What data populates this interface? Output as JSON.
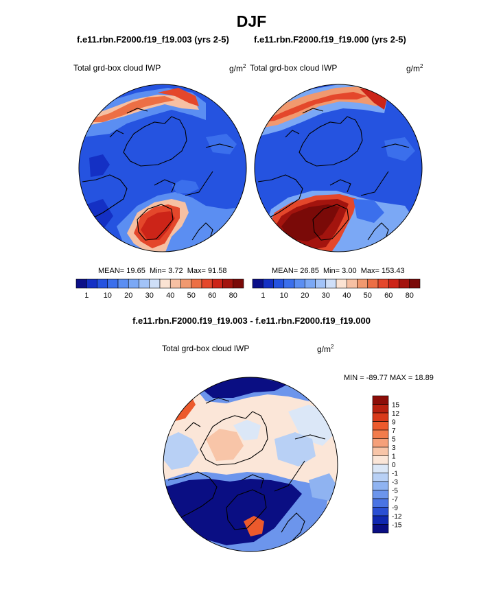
{
  "page": {
    "season": "DJF",
    "case_a": "f.e11.rbn.F2000.f19_f19.003 (yrs 2-5)",
    "case_b": "f.e11.rbn.F2000.f19_f19.000 (yrs 2-5)",
    "diff_title": "f.e11.rbn.F2000.f19_f19.003 - f.e11.rbn.F2000.f19_f19.000",
    "variable": "Total grd-box cloud IWP",
    "unit": "g/m",
    "unit_exp": "2"
  },
  "chart_data": [
    {
      "type": "heatmap",
      "projection": "north polar stereographic",
      "title": "Total grd-box cloud IWP",
      "units": "g/m^2",
      "stats": {
        "mean": "19.65",
        "min": "3.72",
        "max": "91.58"
      },
      "mean_label": "MEAN=",
      "min_label": "Min=",
      "max_label": "Max=",
      "colorbar": {
        "levels": [
          1,
          5,
          10,
          15,
          20,
          25,
          30,
          35,
          40,
          45,
          50,
          55,
          60,
          70,
          80
        ],
        "tick_labels": [
          "1",
          "10",
          "20",
          "30",
          "40",
          "50",
          "60",
          "80"
        ],
        "colors": [
          "#0b0f88",
          "#1430c4",
          "#2553e0",
          "#3b6fec",
          "#5b8ef2",
          "#7ba8f5",
          "#a2c3f8",
          "#cfdff8",
          "#fbe3d3",
          "#f6c0a3",
          "#f1996f",
          "#ec6f45",
          "#e4472b",
          "#cc2418",
          "#a3140e",
          "#7a0a08"
        ]
      }
    },
    {
      "type": "heatmap",
      "projection": "north polar stereographic",
      "title": "Total grd-box cloud IWP",
      "units": "g/m^2",
      "stats": {
        "mean": "26.85",
        "min": "3.00",
        "max": "153.43"
      },
      "mean_label": "MEAN=",
      "min_label": "Min=",
      "max_label": "Max=",
      "colorbar": {
        "levels": [
          1,
          5,
          10,
          15,
          20,
          25,
          30,
          35,
          40,
          45,
          50,
          55,
          60,
          70,
          80
        ],
        "tick_labels": [
          "1",
          "10",
          "20",
          "30",
          "40",
          "50",
          "60",
          "80"
        ]
      }
    },
    {
      "type": "heatmap",
      "projection": "north polar stereographic",
      "title": "Total grd-box cloud IWP",
      "units": "g/m^2",
      "minmax_text": "MIN = -89.77 MAX =  18.89",
      "colorbar": {
        "levels": [
          "15",
          "12",
          "9",
          "7",
          "5",
          "3",
          "1",
          "0",
          "-1",
          "-3",
          "-5",
          "-7",
          "-9",
          "-12",
          "-15"
        ],
        "colors": [
          "#8c0d08",
          "#b8200f",
          "#d93a1a",
          "#ec5a2c",
          "#f27c4c",
          "#f5a07a",
          "#f8c5a8",
          "#fbe6d8",
          "#dbe7f7",
          "#b8d0f5",
          "#8fb3f1",
          "#6c95ec",
          "#4a74e4",
          "#2a4fd3",
          "#1028b0",
          "#0a0e83"
        ]
      }
    }
  ]
}
